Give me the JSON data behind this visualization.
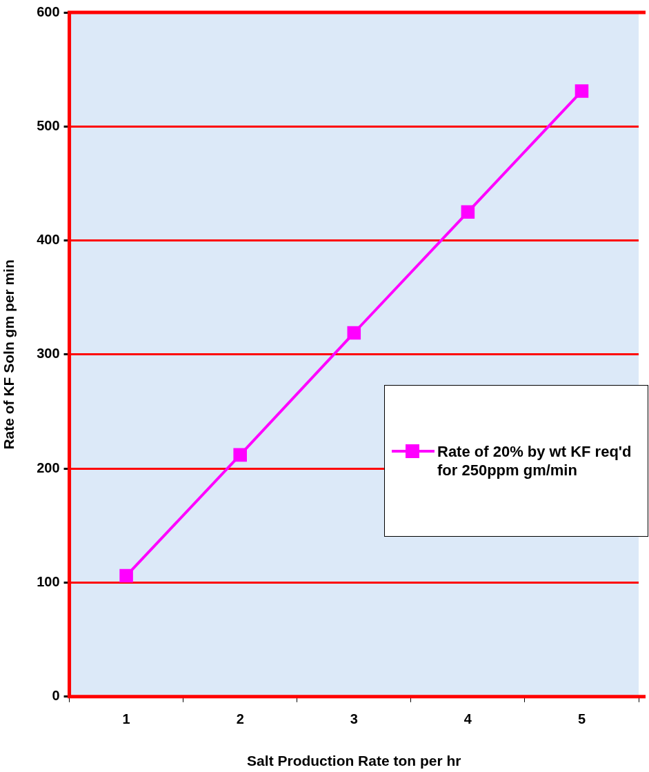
{
  "chart_data": {
    "type": "line",
    "xlabel": "Salt Production Rate ton per hr",
    "ylabel": "Rate of KF Soln gm per min",
    "categories": [
      "1",
      "2",
      "3",
      "4",
      "5"
    ],
    "series": [
      {
        "name": "Rate of 20% by wt KF req'd for 250ppm gm/min",
        "color": "#ff00ff",
        "values": [
          106,
          212,
          319,
          425,
          531
        ]
      }
    ],
    "ylim": [
      0,
      600
    ],
    "yticks": [
      0,
      100,
      200,
      300,
      400,
      500,
      600
    ],
    "grid": "y",
    "legend": "right",
    "marker": "square",
    "line_style": "solid"
  }
}
